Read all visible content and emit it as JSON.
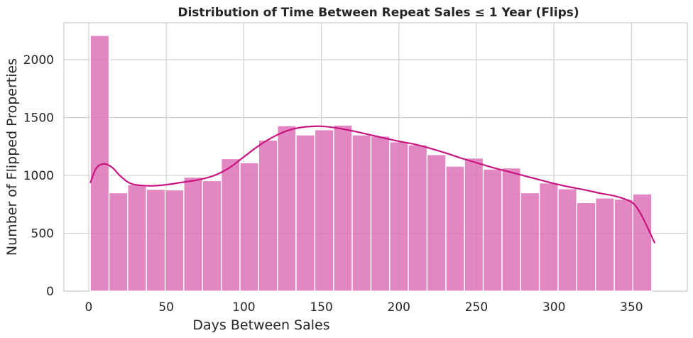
{
  "chart_data": {
    "type": "bar",
    "subtype": "histogram-with-kde",
    "title": "Distribution of Time Between Repeat Sales ≤ 1 Year (Flips)",
    "xlabel": "Days Between Sales",
    "ylabel": "Number of Flipped Properties",
    "xlim": [
      -16,
      386
    ],
    "ylim": [
      0,
      2320
    ],
    "xticks": [
      0,
      50,
      100,
      150,
      200,
      250,
      300,
      350
    ],
    "yticks": [
      0,
      500,
      1000,
      1500,
      2000
    ],
    "grid": true,
    "legend": "none",
    "bar_color": "#dd72b6",
    "bar_edge_color": "#ffffff",
    "kde_color": "#c8157f",
    "bins": [
      {
        "x0": 1.0,
        "x1": 13.1,
        "value": 2210
      },
      {
        "x0": 13.1,
        "x1": 25.1,
        "value": 850
      },
      {
        "x0": 25.1,
        "x1": 37.2,
        "value": 920
      },
      {
        "x0": 37.2,
        "x1": 49.3,
        "value": 880
      },
      {
        "x0": 49.3,
        "x1": 61.3,
        "value": 875
      },
      {
        "x0": 61.3,
        "x1": 73.4,
        "value": 985
      },
      {
        "x0": 73.4,
        "x1": 85.5,
        "value": 955
      },
      {
        "x0": 85.5,
        "x1": 97.5,
        "value": 1145
      },
      {
        "x0": 97.5,
        "x1": 109.6,
        "value": 1110
      },
      {
        "x0": 109.6,
        "x1": 121.7,
        "value": 1305
      },
      {
        "x0": 121.7,
        "x1": 133.7,
        "value": 1430
      },
      {
        "x0": 133.7,
        "x1": 145.8,
        "value": 1350
      },
      {
        "x0": 145.8,
        "x1": 157.9,
        "value": 1395
      },
      {
        "x0": 157.9,
        "x1": 169.9,
        "value": 1435
      },
      {
        "x0": 169.9,
        "x1": 182.0,
        "value": 1350
      },
      {
        "x0": 182.0,
        "x1": 194.1,
        "value": 1340
      },
      {
        "x0": 194.1,
        "x1": 206.1,
        "value": 1290
      },
      {
        "x0": 206.1,
        "x1": 218.2,
        "value": 1265
      },
      {
        "x0": 218.2,
        "x1": 230.3,
        "value": 1180
      },
      {
        "x0": 230.3,
        "x1": 242.3,
        "value": 1080
      },
      {
        "x0": 242.3,
        "x1": 254.4,
        "value": 1150
      },
      {
        "x0": 254.4,
        "x1": 266.5,
        "value": 1055
      },
      {
        "x0": 266.5,
        "x1": 278.5,
        "value": 1065
      },
      {
        "x0": 278.5,
        "x1": 290.6,
        "value": 850
      },
      {
        "x0": 290.6,
        "x1": 302.7,
        "value": 935
      },
      {
        "x0": 302.7,
        "x1": 314.7,
        "value": 885
      },
      {
        "x0": 314.7,
        "x1": 326.8,
        "value": 765
      },
      {
        "x0": 326.8,
        "x1": 338.9,
        "value": 805
      },
      {
        "x0": 338.9,
        "x1": 350.9,
        "value": 795
      },
      {
        "x0": 350.9,
        "x1": 363.0,
        "value": 840
      }
    ],
    "kde_curve": {
      "x": [
        1,
        5,
        10,
        15,
        20,
        25,
        30,
        40,
        50,
        60,
        70,
        80,
        90,
        100,
        110,
        120,
        130,
        140,
        150,
        160,
        170,
        180,
        190,
        200,
        210,
        220,
        230,
        240,
        250,
        260,
        270,
        280,
        290,
        300,
        310,
        320,
        330,
        340,
        350,
        355,
        360,
        365
      ],
      "y": [
        935,
        1065,
        1100,
        1070,
        1000,
        945,
        920,
        910,
        920,
        940,
        960,
        995,
        1060,
        1160,
        1260,
        1340,
        1395,
        1420,
        1425,
        1410,
        1385,
        1355,
        1325,
        1295,
        1270,
        1235,
        1195,
        1150,
        1110,
        1070,
        1035,
        1000,
        965,
        930,
        900,
        875,
        845,
        820,
        770,
        690,
        560,
        415
      ]
    }
  }
}
